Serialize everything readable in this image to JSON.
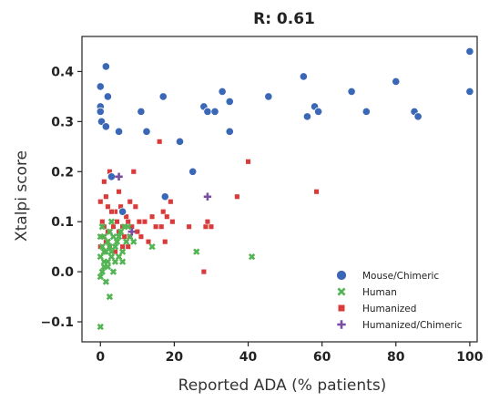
{
  "chart_data": {
    "type": "scatter",
    "title": "R: 0.61",
    "xlabel": "Reported ADA (% patients)",
    "ylabel": "Xtalpi score",
    "xlim": [
      -5,
      102
    ],
    "ylim": [
      -0.14,
      0.47
    ],
    "xticks": [
      0,
      20,
      40,
      60,
      80,
      100
    ],
    "yticks": [
      -0.1,
      0.0,
      0.1,
      0.2,
      0.3,
      0.4
    ],
    "xtick_labels": [
      "0",
      "20",
      "40",
      "60",
      "80",
      "100"
    ],
    "ytick_labels": [
      "−0.1",
      "0.0",
      "0.1",
      "0.2",
      "0.3",
      "0.4"
    ],
    "grid": false,
    "legend_position": "lower-right",
    "series": [
      {
        "name": "Mouse/Chimeric",
        "marker": "circle",
        "color": "#3a67b6",
        "points": [
          [
            0,
            0.37
          ],
          [
            0,
            0.33
          ],
          [
            0,
            0.32
          ],
          [
            0.3,
            0.3
          ],
          [
            1.5,
            0.41
          ],
          [
            2,
            0.35
          ],
          [
            1.5,
            0.29
          ],
          [
            5,
            0.28
          ],
          [
            11,
            0.32
          ],
          [
            12.5,
            0.28
          ],
          [
            17,
            0.35
          ],
          [
            21.5,
            0.26
          ],
          [
            25,
            0.2
          ],
          [
            17.5,
            0.15
          ],
          [
            28,
            0.33
          ],
          [
            29,
            0.32
          ],
          [
            31,
            0.32
          ],
          [
            33,
            0.36
          ],
          [
            35,
            0.34
          ],
          [
            35,
            0.28
          ],
          [
            45.5,
            0.35
          ],
          [
            55,
            0.39
          ],
          [
            56,
            0.31
          ],
          [
            58,
            0.33
          ],
          [
            59,
            0.32
          ],
          [
            68,
            0.36
          ],
          [
            72,
            0.32
          ],
          [
            80,
            0.38
          ],
          [
            85,
            0.32
          ],
          [
            86,
            0.31
          ],
          [
            100,
            0.44
          ],
          [
            100,
            0.36
          ],
          [
            3,
            0.19
          ],
          [
            6,
            0.12
          ]
        ]
      },
      {
        "name": "Human",
        "marker": "x",
        "color": "#52b452",
        "points": [
          [
            0,
            -0.11
          ],
          [
            2.5,
            -0.05
          ],
          [
            0,
            -0.01
          ],
          [
            0.5,
            0.0
          ],
          [
            1,
            0.02
          ],
          [
            1.5,
            0.04
          ],
          [
            2,
            0.01
          ],
          [
            0,
            0.03
          ],
          [
            0.5,
            0.05
          ],
          [
            1,
            0.07
          ],
          [
            2,
            0.06
          ],
          [
            3,
            0.03
          ],
          [
            3.5,
            0.0
          ],
          [
            4,
            0.05
          ],
          [
            4.5,
            0.06
          ],
          [
            5,
            0.07
          ],
          [
            5.5,
            0.08
          ],
          [
            6,
            0.04
          ],
          [
            6.5,
            0.09
          ],
          [
            7,
            0.06
          ],
          [
            2.5,
            0.08
          ],
          [
            3,
            0.1
          ],
          [
            1.5,
            -0.02
          ],
          [
            0,
            0.07
          ],
          [
            1,
            0.01
          ],
          [
            3,
            0.04
          ],
          [
            4,
            0.02
          ],
          [
            5,
            0.03
          ],
          [
            8,
            0.07
          ],
          [
            9,
            0.06
          ],
          [
            14,
            0.05
          ],
          [
            26,
            0.04
          ],
          [
            41,
            0.03
          ],
          [
            0.5,
            0.09
          ],
          [
            2,
            0.02
          ],
          [
            3.5,
            0.07
          ],
          [
            6,
            0.02
          ],
          [
            7.5,
            0.09
          ],
          [
            1,
            0.04
          ],
          [
            2.5,
            0.05
          ]
        ]
      },
      {
        "name": "Humanized",
        "marker": "square",
        "color": "#d93b3b",
        "points": [
          [
            0,
            0.14
          ],
          [
            0.5,
            0.1
          ],
          [
            0.5,
            0.07
          ],
          [
            1,
            0.18
          ],
          [
            1.5,
            0.15
          ],
          [
            2,
            0.08
          ],
          [
            2.5,
            0.2
          ],
          [
            3,
            0.19
          ],
          [
            3.5,
            0.09
          ],
          [
            4,
            0.12
          ],
          [
            4.5,
            0.1
          ],
          [
            5,
            0.16
          ],
          [
            5.5,
            0.13
          ],
          [
            6,
            0.09
          ],
          [
            6.5,
            0.07
          ],
          [
            7,
            0.11
          ],
          [
            7.5,
            0.1
          ],
          [
            8,
            0.14
          ],
          [
            8.5,
            0.09
          ],
          [
            9,
            0.2
          ],
          [
            9.5,
            0.13
          ],
          [
            10,
            0.08
          ],
          [
            10.5,
            0.1
          ],
          [
            11,
            0.07
          ],
          [
            12,
            0.1
          ],
          [
            13,
            0.06
          ],
          [
            14,
            0.11
          ],
          [
            15,
            0.09
          ],
          [
            16,
            0.26
          ],
          [
            16.5,
            0.09
          ],
          [
            17,
            0.12
          ],
          [
            17.5,
            0.06
          ],
          [
            18,
            0.11
          ],
          [
            19,
            0.14
          ],
          [
            19.5,
            0.1
          ],
          [
            24,
            0.09
          ],
          [
            28,
            0.0
          ],
          [
            28.5,
            0.09
          ],
          [
            29,
            0.1
          ],
          [
            30,
            0.09
          ],
          [
            37,
            0.15
          ],
          [
            40,
            0.22
          ],
          [
            58.5,
            0.16
          ],
          [
            0,
            0.05
          ],
          [
            1.5,
            0.06
          ],
          [
            2.5,
            0.05
          ],
          [
            4,
            0.04
          ],
          [
            5,
            0.08
          ],
          [
            6,
            0.05
          ],
          [
            3,
            0.12
          ],
          [
            1,
            0.09
          ],
          [
            2,
            0.13
          ],
          [
            7.5,
            0.05
          ],
          [
            8,
            0.07
          ]
        ]
      },
      {
        "name": "Humanized/Chimeric",
        "marker": "plus",
        "color": "#7a4fa3",
        "points": [
          [
            5,
            0.19
          ],
          [
            29,
            0.15
          ],
          [
            8.5,
            0.08
          ]
        ]
      }
    ]
  }
}
